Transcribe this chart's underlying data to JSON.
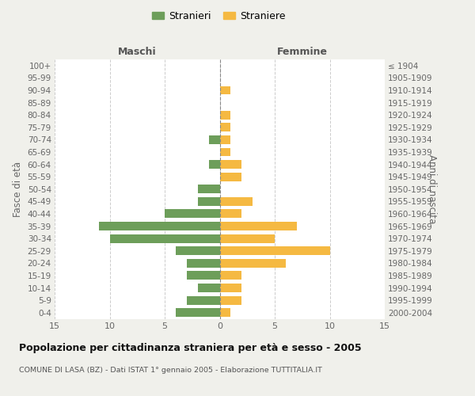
{
  "age_groups": [
    "0-4",
    "5-9",
    "10-14",
    "15-19",
    "20-24",
    "25-29",
    "30-34",
    "35-39",
    "40-44",
    "45-49",
    "50-54",
    "55-59",
    "60-64",
    "65-69",
    "70-74",
    "75-79",
    "80-84",
    "85-89",
    "90-94",
    "95-99",
    "100+"
  ],
  "birth_years": [
    "2000-2004",
    "1995-1999",
    "1990-1994",
    "1985-1989",
    "1980-1984",
    "1975-1979",
    "1970-1974",
    "1965-1969",
    "1960-1964",
    "1955-1959",
    "1950-1954",
    "1945-1949",
    "1940-1944",
    "1935-1939",
    "1930-1934",
    "1925-1929",
    "1920-1924",
    "1915-1919",
    "1910-1914",
    "1905-1909",
    "≤ 1904"
  ],
  "maschi": [
    4,
    3,
    2,
    3,
    3,
    4,
    10,
    11,
    5,
    2,
    2,
    0,
    1,
    0,
    1,
    0,
    0,
    0,
    0,
    0,
    0
  ],
  "femmine": [
    1,
    2,
    2,
    2,
    6,
    10,
    5,
    7,
    2,
    3,
    0,
    2,
    2,
    1,
    1,
    1,
    1,
    0,
    1,
    0,
    0
  ],
  "color_maschi": "#6d9e5a",
  "color_femmine": "#f5b942",
  "xlim": 15,
  "title": "Popolazione per cittadinanza straniera per età e sesso - 2005",
  "subtitle": "COMUNE DI LASA (BZ) - Dati ISTAT 1° gennaio 2005 - Elaborazione TUTTITALIA.IT",
  "ylabel_left": "Fasce di età",
  "ylabel_right": "Anni di nascita",
  "label_maschi": "Stranieri",
  "label_femmine": "Straniere",
  "header_left": "Maschi",
  "header_right": "Femmine",
  "bg_color": "#f0f0eb",
  "plot_bg_color": "#ffffff"
}
